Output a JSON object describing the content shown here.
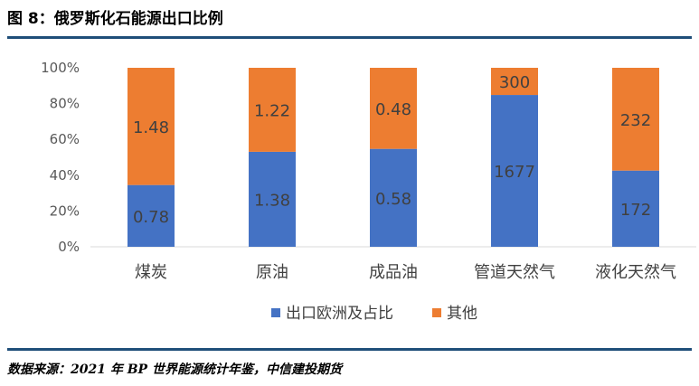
{
  "header": {
    "title": "图 8：俄罗斯化石能源出口比例"
  },
  "footer": {
    "source": "数据来源：2021 年 BP 世界能源统计年鉴，中信建投期货"
  },
  "colors": {
    "series_europe": "#4472c4",
    "series_other": "#ed7d31",
    "rule": "#1f4e79"
  },
  "chart_data": {
    "type": "bar",
    "stacked": "percent",
    "categories": [
      "煤炭",
      "原油",
      "成品油",
      "管道天然气",
      "液化天然气"
    ],
    "series": [
      {
        "name": "出口欧洲及占比",
        "values": [
          0.78,
          1.38,
          0.58,
          1677,
          172
        ],
        "labels": [
          "0.78",
          "1.38",
          "0.58",
          "1677",
          "172"
        ]
      },
      {
        "name": "其他",
        "values": [
          1.48,
          1.22,
          0.48,
          300,
          232
        ],
        "labels": [
          "1.48",
          "1.22",
          "0.48",
          "300",
          "232"
        ]
      }
    ],
    "yticks": [
      "0%",
      "20%",
      "40%",
      "60%",
      "80%",
      "100%"
    ],
    "ylim": [
      0,
      100
    ],
    "grid": false,
    "legend": "bottom"
  }
}
